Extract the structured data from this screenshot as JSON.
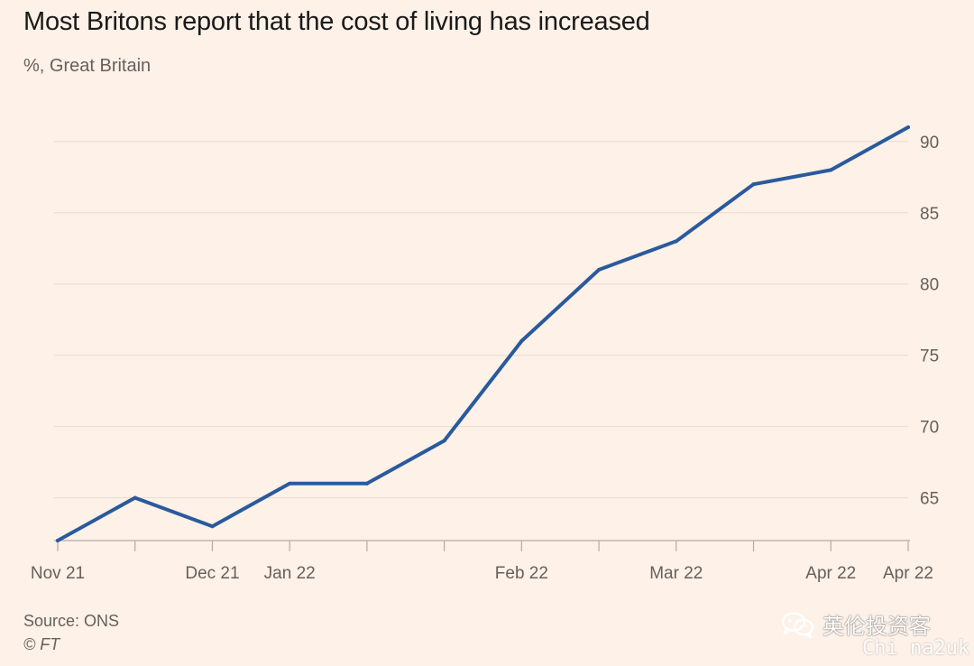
{
  "header": {
    "title": "Most Britons report that the cost of living has increased",
    "subtitle": "%, Great Britain"
  },
  "footer": {
    "source": "Source: ONS",
    "copyright": "© FT"
  },
  "watermark": {
    "text": "英伦投资客",
    "sub": "Chi na2uk"
  },
  "colors": {
    "line": "#2a5a9c",
    "grid": "#e8dcd2",
    "axis": "#b4aba4",
    "text": "#66605c",
    "background": "#fdf1e8"
  },
  "chart_data": {
    "type": "line",
    "title": "Most Britons report that the cost of living has increased",
    "subtitle": "%, Great Britain",
    "xlabel": "",
    "ylabel": "",
    "ylim": [
      62,
      92
    ],
    "yticks": [
      65,
      70,
      75,
      80,
      85,
      90
    ],
    "grid": true,
    "y_axis_side": "right",
    "x_tick_labels": [
      {
        "label": "Nov 21",
        "index": 0
      },
      {
        "label": "Dec 21",
        "index": 2
      },
      {
        "label": "Jan 22",
        "index": 3
      },
      {
        "label": "Feb 22",
        "index": 6
      },
      {
        "label": "Mar 22",
        "index": 8
      },
      {
        "label": "Apr 22",
        "index": 10
      },
      {
        "label": "Apr 22",
        "index": 11
      }
    ],
    "series": [
      {
        "values": [
          62,
          65,
          63,
          66,
          66,
          69,
          76,
          81,
          83,
          87,
          88,
          91
        ]
      }
    ]
  }
}
